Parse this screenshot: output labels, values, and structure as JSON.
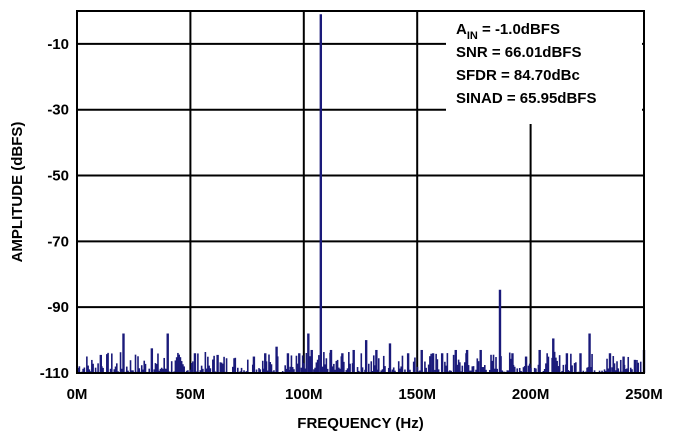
{
  "chart_data": {
    "type": "line",
    "xlabel": "FREQUENCY (Hz)",
    "ylabel": "AMPLITUDE (dBFS)",
    "xlim": [
      0,
      250
    ],
    "ylim": [
      -110,
      0
    ],
    "x_ticks": [
      0,
      50,
      100,
      150,
      200,
      250
    ],
    "x_tick_labels": [
      "0M",
      "50M",
      "100M",
      "150M",
      "200M",
      "250M"
    ],
    "y_ticks": [
      -10,
      -30,
      -50,
      -70,
      -90,
      -110
    ],
    "y_tick_labels": [
      "-10",
      "-30",
      "-50",
      "-70",
      "-90",
      "-110"
    ],
    "grid": true,
    "annotations": [
      {
        "main": "A",
        "sub": "IN",
        "rest": " = -1.0dBFS"
      },
      {
        "main": "SNR = 66.01dBFS"
      },
      {
        "main": "SFDR = 84.70dBc"
      },
      {
        "main": "SINAD = 65.95dBFS"
      }
    ],
    "series": [
      {
        "color": "#1a1a7a",
        "peaks": [
          {
            "x": 10.5,
            "y": -104.5
          },
          {
            "x": 20.5,
            "y": -98
          },
          {
            "x": 33,
            "y": -102.5
          },
          {
            "x": 40,
            "y": -98
          },
          {
            "x": 52,
            "y": -104
          },
          {
            "x": 62,
            "y": -104.5
          },
          {
            "x": 78,
            "y": -105
          },
          {
            "x": 83,
            "y": -104
          },
          {
            "x": 88,
            "y": -102
          },
          {
            "x": 93,
            "y": -104
          },
          {
            "x": 98,
            "y": -104
          },
          {
            "x": 102,
            "y": -98
          },
          {
            "x": 103.5,
            "y": -103
          },
          {
            "x": 107.5,
            "y": -1.0
          },
          {
            "x": 112,
            "y": -103
          },
          {
            "x": 117,
            "y": -104
          },
          {
            "x": 122,
            "y": -103
          },
          {
            "x": 127.5,
            "y": -100
          },
          {
            "x": 132,
            "y": -103
          },
          {
            "x": 138,
            "y": -101
          },
          {
            "x": 146,
            "y": -104
          },
          {
            "x": 152,
            "y": -103
          },
          {
            "x": 157,
            "y": -104
          },
          {
            "x": 161,
            "y": -104
          },
          {
            "x": 167,
            "y": -103
          },
          {
            "x": 172,
            "y": -103
          },
          {
            "x": 178,
            "y": -103
          },
          {
            "x": 186.5,
            "y": -84.7
          },
          {
            "x": 192,
            "y": -104
          },
          {
            "x": 198,
            "y": -105
          },
          {
            "x": 204,
            "y": -103
          },
          {
            "x": 210,
            "y": -99.5
          },
          {
            "x": 216,
            "y": -104
          },
          {
            "x": 222,
            "y": -104
          },
          {
            "x": 226,
            "y": -98
          },
          {
            "x": 235,
            "y": -104
          },
          {
            "x": 241,
            "y": -105
          },
          {
            "x": 246,
            "y": -106
          },
          {
            "x": 250,
            "y": -103
          }
        ]
      }
    ]
  }
}
